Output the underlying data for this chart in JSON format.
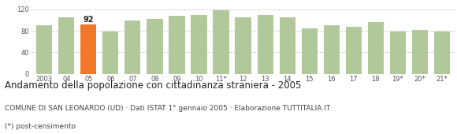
{
  "categories": [
    "2003",
    "04",
    "05",
    "06",
    "07",
    "08",
    "09",
    "10",
    "11*",
    "12",
    "13",
    "14",
    "15",
    "16",
    "17",
    "18",
    "19*",
    "20*",
    "21*"
  ],
  "values": [
    90,
    105,
    92,
    78,
    100,
    102,
    108,
    110,
    118,
    105,
    110,
    105,
    85,
    90,
    88,
    97,
    78,
    82,
    79
  ],
  "highlight_index": 2,
  "highlight_color": "#f07828",
  "bar_color": "#b0c89a",
  "title": "Andamento della popolazione con cittadinanza straniera - 2005",
  "subtitle": "COMUNE DI SAN LEONARDO (UD) · Dati ISTAT 1° gennaio 2005 · Elaborazione TUTTITALIA.IT",
  "footnote": "(*) post-censimento",
  "ylim": [
    0,
    130
  ],
  "yticks": [
    0,
    40,
    80,
    120
  ],
  "highlight_label": "92",
  "background_color": "#ffffff",
  "grid_color": "#cccccc",
  "title_fontsize": 8.5,
  "subtitle_fontsize": 6.5,
  "footnote_fontsize": 6.5,
  "tick_fontsize": 6.0
}
